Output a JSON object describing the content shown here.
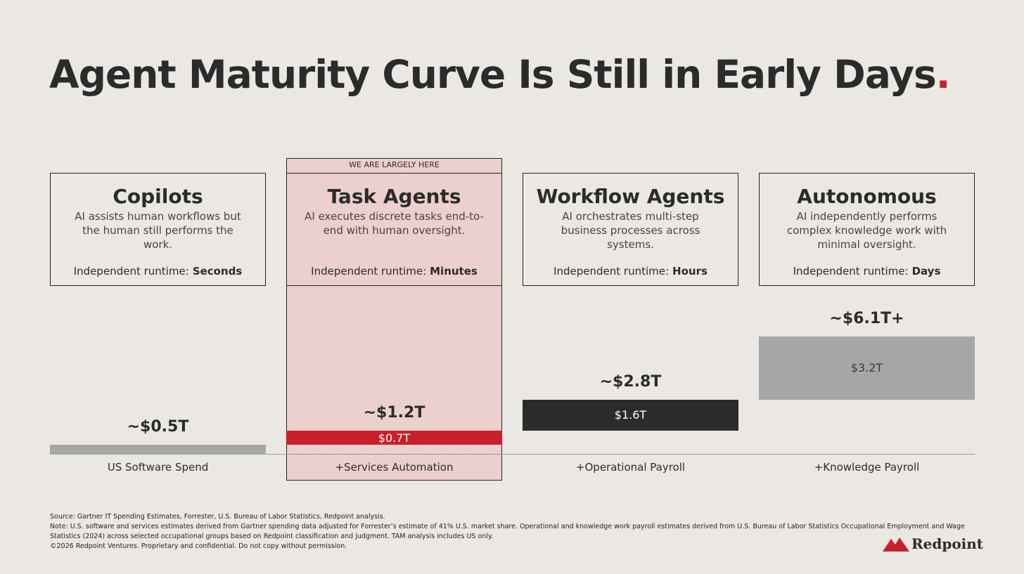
{
  "title": "Agent Maturity Curve Is Still in Early Days",
  "title_end": ".",
  "banner": "WE ARE LARGELY HERE",
  "stages": [
    {
      "name": "Copilots",
      "description": "AI assists human workflows but the human still performs the work.",
      "runtime_label": "Independent runtime:",
      "runtime": "Seconds"
    },
    {
      "name": "Task Agents",
      "description": "AI executes discrete tasks end-to-end with human oversight.",
      "runtime_label": "Independent runtime:",
      "runtime": "Minutes"
    },
    {
      "name": "Workflow Agents",
      "description": "AI orchestrates multi-step business processes across systems.",
      "runtime_label": "Independent runtime:",
      "runtime": "Hours"
    },
    {
      "name": "Autonomous",
      "description": "AI independently performs complex knowledge work with minimal oversight.",
      "runtime_label": "Independent runtime:",
      "runtime": "Days"
    }
  ],
  "chart_data": {
    "type": "waterfall",
    "categories": [
      "US Software Spend",
      "+Services Automation",
      "+Operational Payroll",
      "+Knowledge Payroll"
    ],
    "values": [
      0.5,
      0.7,
      1.6,
      3.2
    ],
    "value_labels": [
      null,
      "$0.7T",
      "$1.6T",
      "$3.2T"
    ],
    "totals": [
      0.5,
      1.2,
      2.8,
      6.1
    ],
    "total_labels": [
      "~$0.5T",
      "~$1.2T",
      "~$2.8T",
      "~$6.1T+"
    ],
    "colors": [
      "#a6a6a6",
      "#c8202a",
      "#2b2b2b",
      "#a6a6a6"
    ],
    "value_label_colors": [
      "#2b2b2b",
      "#ffffff",
      "#ffffff",
      "#3a3a3a"
    ],
    "highlight": 1
  },
  "footnotes": {
    "source": "Source: Gartner IT Spending Estimates, Forrester, U.S. Bureau of Labor Statistics, Redpoint analysis.",
    "note": "Note: U.S. software and services estimates derived from Gartner spending data adjusted for Forrester’s estimate of 41% U.S. market share. Operational and knowledge work payroll estimates derived from U.S. Bureau of Labor Statistics Occupational Employment and Wage Statistics (2024) across selected occupational groups based on Redpoint classification and judgment. TAM analysis includes US only.",
    "copyright": "©2026 Redpoint Ventures. Proprietary and confidential. Do not copy without permission."
  },
  "logo": "Redpoint"
}
